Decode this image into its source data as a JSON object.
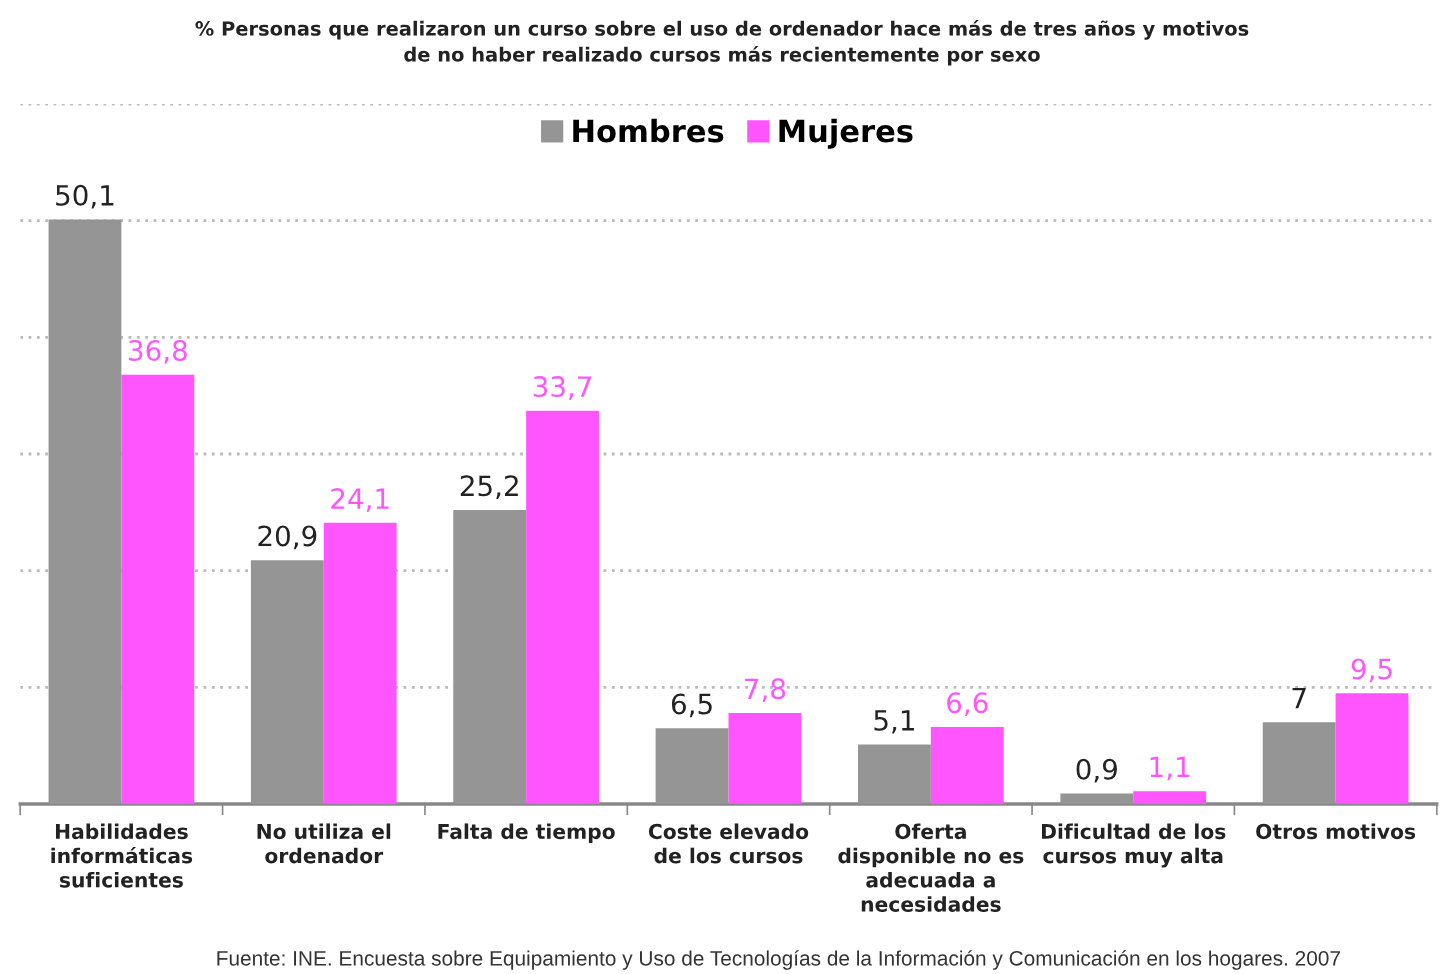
{
  "chart_data": {
    "type": "bar",
    "title": "% Personas que realizaron un curso sobre el uso de ordenador hace más de tres años y motivos\nde no haber realizado cursos más recientemente por sexo",
    "categories": [
      "Habilidades\ninformáticas\nsuficientes",
      "No utiliza el\nordenador",
      "Falta de tiempo",
      "Coste elevado\nde los cursos",
      "Oferta\ndisponible no es\nadecuada a\nnecesidades",
      "Dificultad de los\ncursos muy alta",
      "Otros motivos"
    ],
    "series": [
      {
        "name": "Hombres",
        "color": "#959595",
        "values": [
          50.1,
          20.9,
          25.2,
          6.5,
          5.1,
          0.9,
          7
        ],
        "value_labels": [
          "50,1",
          "20,9",
          "25,2",
          "6,5",
          "5,1",
          "0,9",
          "7"
        ]
      },
      {
        "name": "Mujeres",
        "color": "#ff55ff",
        "values": [
          36.8,
          24.1,
          33.7,
          7.8,
          6.6,
          1.1,
          9.5
        ],
        "value_labels": [
          "36,8",
          "24,1",
          "33,7",
          "7,8",
          "6,6",
          "1,1",
          "9,5"
        ]
      }
    ],
    "ylim": [
      0,
      60
    ],
    "yticks": [
      {
        "value": 10,
        "label": null
      },
      {
        "value": 20,
        "label": null
      },
      {
        "value": 30,
        "label": null
      },
      {
        "value": 40,
        "label": null
      },
      {
        "value": 50,
        "label": null
      },
      {
        "value": 60,
        "label": null
      }
    ],
    "tick_labels": "x",
    "grid": "y",
    "legend": "top",
    "annotations": [
      "Fuente: INE. Encuesta sobre Equipamiento y Uso de Tecnologías de la Información y Comunicación en los hogares. 2007"
    ]
  }
}
